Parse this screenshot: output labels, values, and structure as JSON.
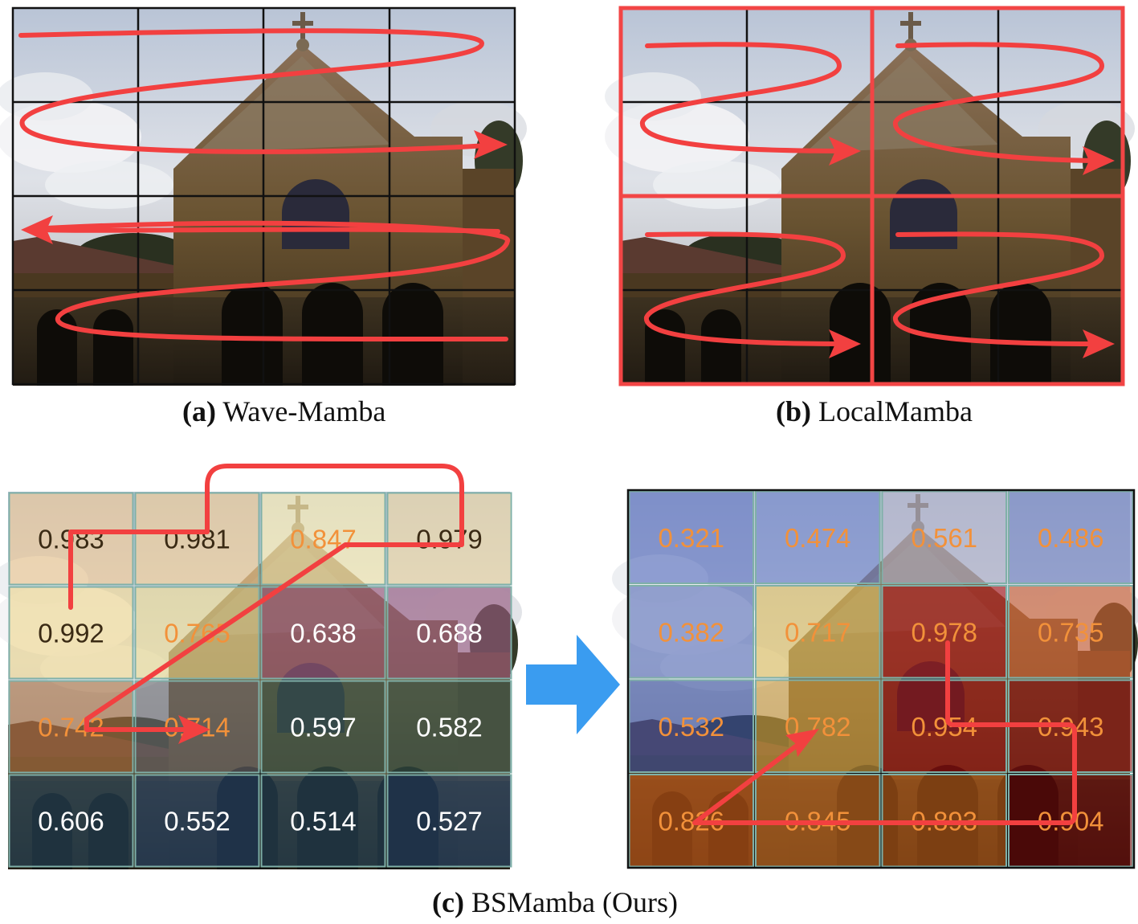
{
  "panels": {
    "a": {
      "caption_letter": "(a)",
      "caption_text": " Wave-Mamba"
    },
    "b": {
      "caption_letter": "(b)",
      "caption_text": " LocalMamba"
    },
    "c": {
      "caption_letter": "(c)",
      "caption_text": " BSMamba (Ours)"
    }
  },
  "grids": {
    "left": {
      "values": [
        [
          "0.983",
          "0.981",
          "0.847",
          "0.979"
        ],
        [
          "0.992",
          "0.765",
          "0.638",
          "0.688"
        ],
        [
          "0.742",
          "0.714",
          "0.597",
          "0.582"
        ],
        [
          "0.606",
          "0.552",
          "0.514",
          "0.527"
        ]
      ],
      "text_colors": [
        [
          "#3a2a14",
          "#3a2a14",
          "#f2913a",
          "#3a2a14"
        ],
        [
          "#3a2a14",
          "#f2913a",
          "#ffffff",
          "#ffffff"
        ],
        [
          "#f2913a",
          "#f2913a",
          "#ffffff",
          "#ffffff"
        ],
        [
          "#ffffff",
          "#ffffff",
          "#ffffff",
          "#ffffff"
        ]
      ],
      "tints": [
        [
          "#f0c890",
          "#f0cc90",
          "#fff0b0",
          "#f0d8a0"
        ],
        [
          "#f0d890",
          "#e8d890",
          "#a05a7a",
          "#9a5a80"
        ],
        [
          "#a87040",
          "#6a6a70",
          "#3a5a50",
          "#3a5a50"
        ],
        [
          "#2a4a60",
          "#2a4a70",
          "#2a4a60",
          "#2a4a70"
        ]
      ]
    },
    "right": {
      "values": [
        [
          "0.321",
          "0.474",
          "0.561",
          "0.486"
        ],
        [
          "0.382",
          "0.717",
          "0.978",
          "0.735"
        ],
        [
          "0.532",
          "0.782",
          "0.954",
          "0.943"
        ],
        [
          "0.826",
          "0.845",
          "0.893",
          "0.904"
        ]
      ],
      "text_color": "#f2913a",
      "tints": [
        [
          "#5a70c0",
          "#6a80c8",
          "#b0b0c8",
          "#7080c0"
        ],
        [
          "#5a70b8",
          "#e0c060",
          "#b01818",
          "#d06030"
        ],
        [
          "#3a50a0",
          "#d0a040",
          "#a01010",
          "#901010"
        ],
        [
          "#d06018",
          "#d07020",
          "#c06018",
          "#700808"
        ]
      ]
    }
  },
  "colors": {
    "scan_path": "#f24040",
    "scan_path_top": "#f06050",
    "region_border": "#f24545",
    "grid_line": "#111111",
    "transition_arrow": "#3a9cf0"
  }
}
